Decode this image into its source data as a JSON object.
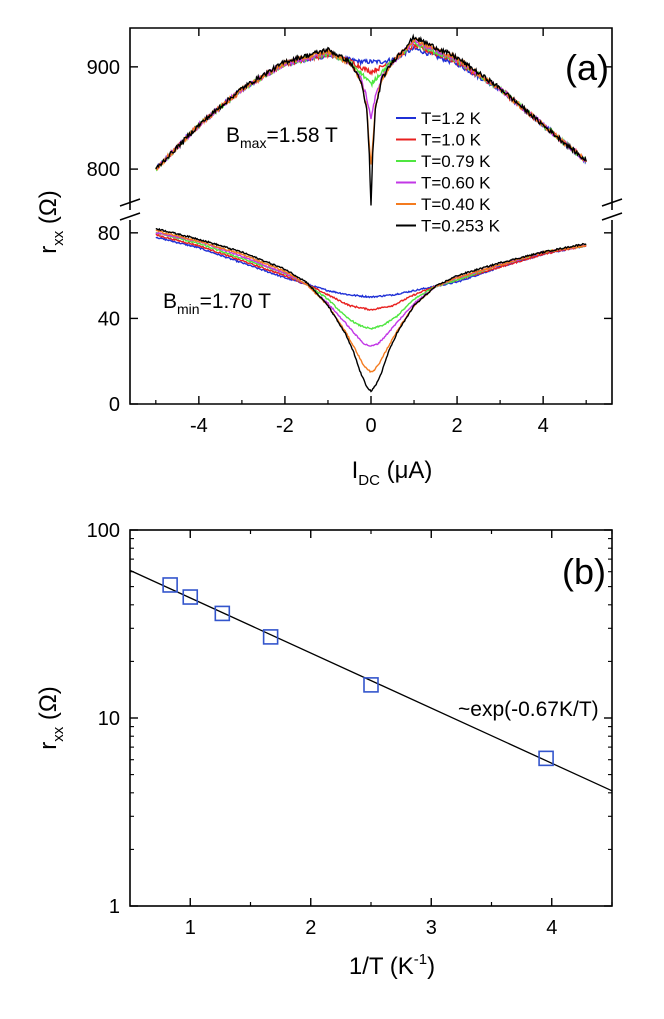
{
  "chart_data": [
    {
      "panel_label": "(a)",
      "type": "line",
      "xlabel": {
        "main": "I",
        "sub": "DC",
        "unit": " (μA)"
      },
      "ylabel": {
        "main": "r",
        "sub": "xx",
        "unit": " (Ω)"
      },
      "xlim": [
        -5.6,
        5.6
      ],
      "ylim_lower": [
        0,
        86
      ],
      "ylim_upper": [
        760,
        938
      ],
      "xticks": [
        -4,
        -2,
        0,
        2,
        4
      ],
      "xtick_labels": [
        "-4",
        "-2",
        "0",
        "2",
        "4"
      ],
      "yticks_upper": [
        800,
        900
      ],
      "ytick_labels_upper": [
        "800",
        "900"
      ],
      "yticks_lower": [
        0,
        40,
        80
      ],
      "ytick_labels_lower": [
        "0",
        "40",
        "80"
      ],
      "axis_break": true,
      "annotations": [
        {
          "main": "B",
          "sub": "max",
          "rest": "=1.58 T"
        },
        {
          "main": "B",
          "sub": "min",
          "rest": "=1.70 T"
        }
      ],
      "legend_position": "top-right",
      "series": [
        {
          "name": "T=1.2 K",
          "color": "#1f30d6",
          "upper_x": [
            -5,
            -4,
            -3,
            -2,
            -1,
            -0.5,
            -0.25,
            0,
            0.25,
            0.5,
            1,
            2,
            3,
            4,
            5
          ],
          "upper_y": [
            800,
            843,
            878,
            903,
            911,
            907,
            905,
            905,
            905,
            907,
            918,
            903,
            878,
            843,
            808
          ],
          "lower_x": [
            -5,
            -4,
            -3,
            -2,
            -1.5,
            -1,
            -0.5,
            0,
            0.5,
            1,
            1.5,
            2,
            3,
            4,
            5
          ],
          "lower_y": [
            78,
            73,
            66,
            59,
            56,
            53,
            51,
            50,
            51,
            53,
            55,
            57,
            64,
            70,
            74
          ]
        },
        {
          "name": "T=1.0 K",
          "color": "#e8201f",
          "upper_x": [
            -5,
            -4,
            -3,
            -2,
            -1,
            -0.5,
            -0.25,
            -0.1,
            0,
            0.1,
            0.25,
            0.5,
            1,
            2,
            3,
            4,
            5
          ],
          "upper_y": [
            800,
            843,
            878,
            903,
            912,
            906,
            900,
            897,
            895,
            897,
            900,
            906,
            921,
            905,
            878,
            843,
            808
          ],
          "lower_x": [
            -5,
            -4,
            -3,
            -2,
            -1.5,
            -1,
            -0.5,
            -0.25,
            0,
            0.25,
            0.5,
            1,
            1.5,
            2,
            3,
            4,
            5
          ],
          "lower_y": [
            79,
            74,
            67,
            60,
            56,
            51,
            46,
            45,
            44,
            45,
            46,
            51,
            55,
            58,
            64,
            70,
            74
          ]
        },
        {
          "name": "T=0.79 K",
          "color": "#4fe640",
          "upper_x": [
            -5,
            -4,
            -3,
            -2,
            -1,
            -0.5,
            -0.25,
            -0.1,
            0,
            0.1,
            0.25,
            0.5,
            1,
            2,
            3,
            4,
            5
          ],
          "upper_y": [
            800,
            843,
            878,
            903,
            913,
            905,
            895,
            888,
            883,
            888,
            895,
            905,
            923,
            906,
            878,
            843,
            808
          ],
          "lower_x": [
            -5,
            -4,
            -3,
            -2,
            -1.5,
            -1,
            -0.6,
            -0.3,
            0,
            0.3,
            0.6,
            1,
            1.5,
            2,
            3,
            4,
            5
          ],
          "lower_y": [
            80,
            75,
            68,
            61,
            56,
            49,
            41,
            37,
            35,
            37,
            41,
            49,
            55,
            58,
            65,
            71,
            74
          ]
        },
        {
          "name": "T=0.60 K",
          "color": "#c237e6",
          "upper_x": [
            -5,
            -4,
            -3,
            -2,
            -1,
            -0.5,
            -0.25,
            -0.1,
            0,
            0.1,
            0.25,
            0.5,
            1,
            2,
            3,
            4,
            5
          ],
          "upper_y": [
            800,
            843,
            878,
            903,
            914,
            904,
            890,
            870,
            850,
            870,
            890,
            904,
            925,
            907,
            878,
            843,
            808
          ],
          "lower_x": [
            -5,
            -4,
            -3,
            -2,
            -1.5,
            -1,
            -0.6,
            -0.3,
            -0.15,
            0,
            0.15,
            0.3,
            0.6,
            1,
            1.5,
            2,
            3,
            4,
            5
          ],
          "lower_y": [
            80,
            76,
            69,
            61,
            56,
            47,
            38,
            31,
            28,
            27,
            28,
            31,
            38,
            47,
            55,
            59,
            65,
            71,
            74
          ]
        },
        {
          "name": "T=0.40 K",
          "color": "#f47b1f",
          "upper_x": [
            -5,
            -4,
            -3,
            -2,
            -1,
            -0.5,
            -0.25,
            -0.1,
            -0.05,
            0,
            0.05,
            0.1,
            0.25,
            0.5,
            1,
            2,
            3,
            4,
            5
          ],
          "upper_y": [
            800,
            843,
            878,
            904,
            915,
            904,
            888,
            860,
            830,
            805,
            830,
            860,
            888,
            904,
            927,
            908,
            878,
            843,
            808
          ],
          "lower_x": [
            -5,
            -4,
            -3,
            -2,
            -1.5,
            -1,
            -0.6,
            -0.35,
            -0.2,
            -0.08,
            0,
            0.08,
            0.2,
            0.35,
            0.6,
            1,
            1.5,
            2,
            3,
            4,
            5
          ],
          "lower_y": [
            81,
            76,
            70,
            62,
            56,
            46,
            34,
            25,
            19,
            16,
            15,
            16,
            19,
            25,
            34,
            46,
            55,
            59,
            65,
            71,
            74
          ]
        },
        {
          "name": "T=0.253 K",
          "color": "#000000",
          "upper_x": [
            -5,
            -4,
            -3,
            -2,
            -1,
            -0.5,
            -0.25,
            -0.1,
            -0.04,
            0,
            0.04,
            0.1,
            0.25,
            0.5,
            1,
            2,
            3,
            4,
            5
          ],
          "upper_y": [
            800,
            843,
            879,
            905,
            917,
            905,
            888,
            858,
            815,
            763,
            815,
            858,
            888,
            905,
            929,
            909,
            879,
            843,
            808
          ],
          "lower_x": [
            -5,
            -4,
            -3,
            -2,
            -1.5,
            -1,
            -0.6,
            -0.4,
            -0.25,
            -0.12,
            -0.05,
            0,
            0.05,
            0.12,
            0.25,
            0.4,
            0.6,
            1,
            1.5,
            2,
            3,
            4,
            5
          ],
          "lower_y": [
            82,
            77,
            71,
            63,
            57,
            46,
            33,
            24,
            15,
            9,
            7,
            6,
            7,
            9,
            15,
            24,
            33,
            46,
            55,
            60,
            66,
            71,
            75
          ]
        }
      ]
    },
    {
      "panel_label": "(b)",
      "type": "scatter",
      "xlabel": {
        "main": "1/T (K",
        "sup": "-1",
        "rest": ")"
      },
      "ylabel": {
        "main": "r",
        "sub": "xx",
        "unit": " (Ω)"
      },
      "xlim": [
        0.5,
        4.5
      ],
      "ylim": [
        1,
        100
      ],
      "y_scale": "log",
      "xticks": [
        1,
        2,
        3,
        4
      ],
      "xtick_labels": [
        "1",
        "2",
        "3",
        "4"
      ],
      "yticks": [
        1,
        10,
        100
      ],
      "ytick_labels": [
        "1",
        "10",
        "100"
      ],
      "points": {
        "x": [
          0.833,
          1.0,
          1.266,
          1.667,
          2.5,
          3.953
        ],
        "y": [
          51,
          44,
          36,
          27,
          15,
          6.1
        ],
        "color": "#3355cc",
        "marker": "open-square"
      },
      "fit_line": {
        "x": [
          0.5,
          4.5
        ],
        "y": [
          61,
          4.1
        ],
        "color": "#000000"
      },
      "annotation": "~exp(-0.67K/T)"
    }
  ]
}
